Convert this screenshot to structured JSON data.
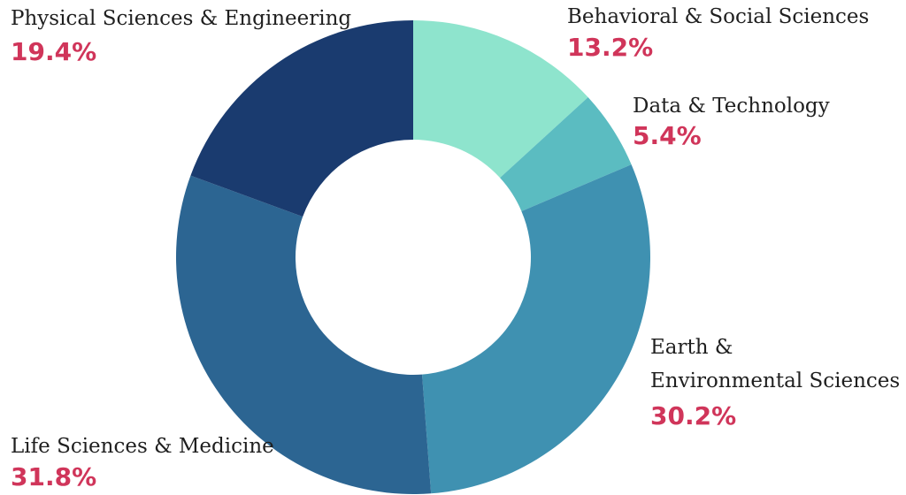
{
  "chart_data": {
    "type": "pie",
    "style": "donut",
    "categories": [
      "Behavioral & Social Sciences",
      "Data & Technology",
      "Earth & Environmental Sciences",
      "Life Sciences & Medicine",
      "Physical Sciences & Engineering"
    ],
    "values": [
      13.2,
      5.4,
      30.2,
      31.8,
      19.4
    ],
    "labels": [
      {
        "lines": [
          "Behavioral & Social Sciences"
        ],
        "value_text": "13.2%"
      },
      {
        "lines": [
          "Data & Technology"
        ],
        "value_text": "5.4%"
      },
      {
        "lines": [
          "Earth &",
          "Environmental Sciences"
        ],
        "value_text": "30.2%"
      },
      {
        "lines": [
          "Life Sciences & Medicine"
        ],
        "value_text": "31.8%"
      },
      {
        "lines": [
          "Physical Sciences & Engineering"
        ],
        "value_text": "19.4%"
      }
    ],
    "colors": [
      "#8ee4cd",
      "#5bbcc1",
      "#3f91b1",
      "#2c6592",
      "#1a3b6f"
    ],
    "value_label_color": "#d0355a",
    "start": "12 o'clock",
    "direction": "clockwise"
  }
}
